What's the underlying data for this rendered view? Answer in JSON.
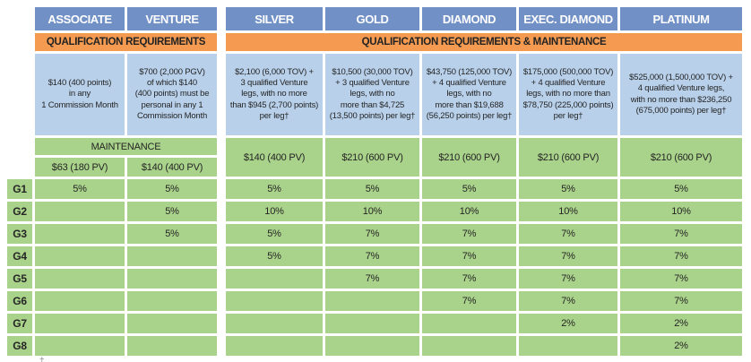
{
  "title": "Rank qualification and generational payout table",
  "colors": {
    "header_blue": "#7190c6",
    "band_orange": "#f49b51",
    "qualification_cell_blue": "#b8d0ea",
    "payout_cell_green": "#a9d28a"
  },
  "left_section": {
    "columns": [
      "ASSOCIATE",
      "VENTURE"
    ],
    "band_label": "QUALIFICATION REQUIREMENTS",
    "qualification": [
      "$140 (400 points)\nin any\n1 Commission Month",
      "$700 (2,000 PGV)\nof which $140\n(400 points) must be\npersonal in any 1\nCommission Month"
    ],
    "maintenance_label": "MAINTENANCE",
    "maintenance_values": [
      "$63 (180 PV)",
      "$140 (400 PV)"
    ]
  },
  "right_section": {
    "columns": [
      "SILVER",
      "GOLD",
      "DIAMOND",
      "EXEC. DIAMOND",
      "PLATINUM"
    ],
    "band_label": "QUALIFICATION REQUIREMENTS & MAINTENANCE",
    "qualification": [
      "$2,100 (6,000 TOV) +\n3 qualified Venture\nlegs, with no more\nthan $945 (2,700 points)\nper leg†",
      "$10,500 (30,000 TOV)\n+ 3 qualified Venture\nlegs, with no\nmore than $4,725\n(13,500 points) per leg†",
      "$43,750 (125,000 TOV)\n+ 4 qualified Venture\nlegs, with no\nmore than $19,688\n(56,250 points) per leg†",
      "$175,000 (500,000 TOV)\n+ 4  qualified Venture\nlegs, with no more than\n$78,750 (225,000 points)\nper leg†",
      "$525,000 (1,500,000 TOV) +\n4 qualified Venture legs,\nwith no more than $236,250\n(675,000 points) per leg†"
    ],
    "maintenance_values": [
      "$140 (400 PV)",
      "$210 (600 PV)",
      "$210 (600 PV)",
      "$210 (600 PV)",
      "$210 (600 PV)"
    ]
  },
  "generations": {
    "labels": [
      "G1",
      "G2",
      "G3",
      "G4",
      "G5",
      "G6",
      "G7",
      "G8"
    ],
    "matrix": [
      [
        "5%",
        "5%",
        "5%",
        "5%",
        "5%",
        "5%",
        "5%"
      ],
      [
        "",
        "5%",
        "10%",
        "10%",
        "10%",
        "10%",
        "10%"
      ],
      [
        "",
        "5%",
        "5%",
        "7%",
        "7%",
        "7%",
        "7%"
      ],
      [
        "",
        "",
        "5%",
        "7%",
        "7%",
        "7%",
        "7%"
      ],
      [
        "",
        "",
        "",
        "7%",
        "7%",
        "7%",
        "7%"
      ],
      [
        "",
        "",
        "",
        "",
        "7%",
        "7%",
        "7%"
      ],
      [
        "",
        "",
        "",
        "",
        "",
        "2%",
        "2%"
      ],
      [
        "",
        "",
        "",
        "",
        "",
        "",
        "2%"
      ]
    ]
  },
  "footnote_marker": "†"
}
